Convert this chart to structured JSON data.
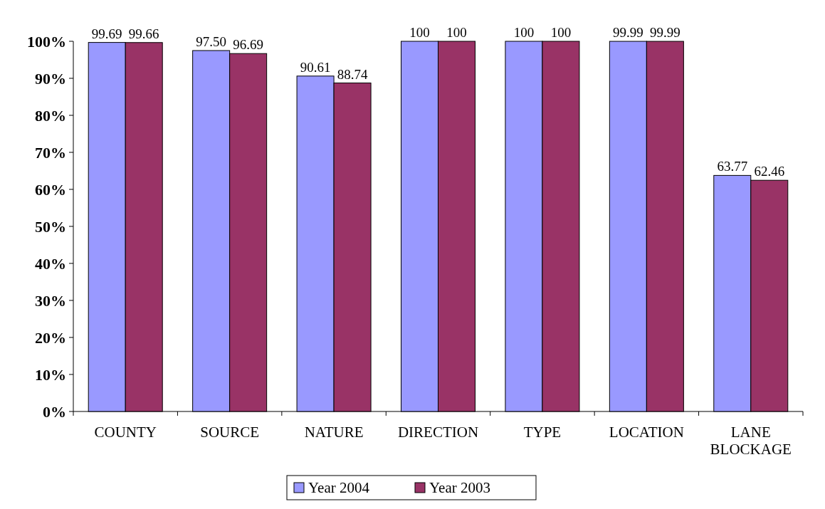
{
  "chart_data": {
    "type": "bar",
    "categories": [
      "COUNTY",
      "SOURCE",
      "NATURE",
      "DIRECTION",
      "TYPE",
      "LOCATION",
      "LANE BLOCKAGE"
    ],
    "series": [
      {
        "name": "Year 2004",
        "color": "#9999ff",
        "values": [
          99.69,
          97.5,
          90.61,
          100,
          100,
          99.99,
          63.77
        ],
        "value_labels": [
          "99.69",
          "97.50",
          "90.61",
          "100",
          "100",
          "99.99",
          "63.77"
        ]
      },
      {
        "name": "Year 2003",
        "color": "#993366",
        "values": [
          99.66,
          96.69,
          88.74,
          100,
          100,
          99.99,
          62.46
        ],
        "value_labels": [
          "99.66",
          "96.69",
          "88.74",
          "100",
          "100",
          "99.99",
          "62.46"
        ]
      }
    ],
    "ylim": [
      0,
      100
    ],
    "yticks": [
      {
        "value": 0,
        "label": "0%"
      },
      {
        "value": 10,
        "label": "10%"
      },
      {
        "value": 20,
        "label": "20%"
      },
      {
        "value": 30,
        "label": "30%"
      },
      {
        "value": 40,
        "label": "40%"
      },
      {
        "value": 50,
        "label": "50%"
      },
      {
        "value": 60,
        "label": "60%"
      },
      {
        "value": 70,
        "label": "70%"
      },
      {
        "value": 80,
        "label": "80%"
      },
      {
        "value": 90,
        "label": "90%"
      },
      {
        "value": 100,
        "label": "100%"
      }
    ],
    "legend": "bottom"
  }
}
